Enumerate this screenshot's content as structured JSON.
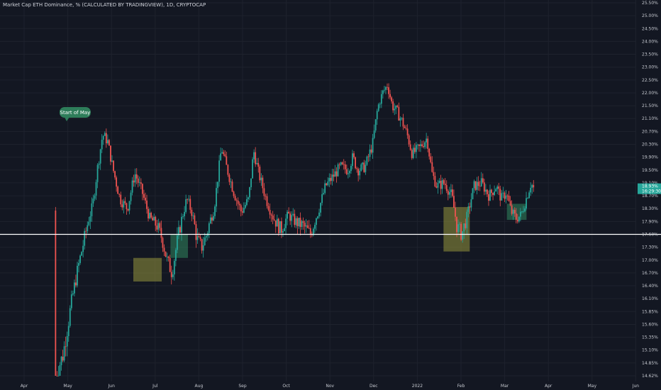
{
  "chart_data": {
    "type": "candlestick",
    "title": "Market Cap ETH Dominance, % (CALCULATED BY TRADINGVIEW), 1D, CRYPTOCAP",
    "x_ticks": [
      "Apr",
      "May",
      "Jun",
      "Jul",
      "Aug",
      "Sep",
      "Oct",
      "Nov",
      "Dec",
      "2022",
      "Feb",
      "Mar",
      "Apr",
      "May",
      "Jun"
    ],
    "y_ticks": [
      "25.50%",
      "25.00%",
      "24.50%",
      "24.00%",
      "23.50%",
      "23.00%",
      "22.50%",
      "22.00%",
      "21.50%",
      "21.10%",
      "20.70%",
      "20.30%",
      "19.90%",
      "19.50%",
      "19.10%",
      "18.70%",
      "18.30%",
      "17.90%",
      "17.60%",
      "17.30%",
      "17.00%",
      "16.70%",
      "16.40%",
      "16.10%",
      "15.85%",
      "15.60%",
      "15.35%",
      "15.10%",
      "14.85%",
      "14.62%"
    ],
    "support_level": 17.6,
    "last_price": {
      "value": "18.93%",
      "countdown": "16:29:30"
    },
    "colors": {
      "up": "#26a69a",
      "down": "#ef5350",
      "background": "#131722",
      "support": "#ffffff",
      "green_box": "#2e7d5a",
      "yellow_box": "#8a8a3a"
    },
    "annotations": [
      {
        "type": "callout",
        "text": "Start of May",
        "at": "May"
      },
      {
        "type": "box",
        "color": "yellow",
        "period": "late Jun",
        "range": [
          16.5,
          17.05
        ]
      },
      {
        "type": "box",
        "color": "green",
        "period": "mid Jul",
        "range": [
          17.05,
          17.6
        ]
      },
      {
        "type": "box",
        "color": "yellow",
        "period": "late Jan",
        "range": [
          17.2,
          18.35
        ]
      },
      {
        "type": "box",
        "color": "green",
        "period": "early Mar",
        "range": [
          17.95,
          18.45
        ]
      }
    ],
    "close_path": [
      {
        "t": 0.0,
        "v": 14.62
      },
      {
        "t": 0.15,
        "v": 15.0
      },
      {
        "t": 0.3,
        "v": 15.9
      },
      {
        "t": 0.45,
        "v": 16.8
      },
      {
        "t": 0.6,
        "v": 17.6
      },
      {
        "t": 0.75,
        "v": 18.4
      },
      {
        "t": 0.85,
        "v": 19.6
      },
      {
        "t": 0.95,
        "v": 20.6
      },
      {
        "t": 1.05,
        "v": 20.4
      },
      {
        "t": 1.15,
        "v": 19.6
      },
      {
        "t": 1.3,
        "v": 18.6
      },
      {
        "t": 1.45,
        "v": 18.3
      },
      {
        "t": 1.6,
        "v": 19.4
      },
      {
        "t": 1.75,
        "v": 18.8
      },
      {
        "t": 1.9,
        "v": 18.0
      },
      {
        "t": 2.05,
        "v": 17.8
      },
      {
        "t": 2.15,
        "v": 17.5
      },
      {
        "t": 2.25,
        "v": 17.0
      },
      {
        "t": 2.35,
        "v": 16.7
      },
      {
        "t": 2.45,
        "v": 17.4
      },
      {
        "t": 2.55,
        "v": 18.0
      },
      {
        "t": 2.65,
        "v": 18.6
      },
      {
        "t": 2.75,
        "v": 18.2
      },
      {
        "t": 2.85,
        "v": 17.5
      },
      {
        "t": 2.95,
        "v": 17.3
      },
      {
        "t": 3.05,
        "v": 17.6
      },
      {
        "t": 3.2,
        "v": 18.3
      },
      {
        "t": 3.35,
        "v": 20.2
      },
      {
        "t": 3.45,
        "v": 19.6
      },
      {
        "t": 3.6,
        "v": 18.8
      },
      {
        "t": 3.75,
        "v": 18.2
      },
      {
        "t": 3.9,
        "v": 18.6
      },
      {
        "t": 4.0,
        "v": 20.1
      },
      {
        "t": 4.1,
        "v": 19.4
      },
      {
        "t": 4.25,
        "v": 18.6
      },
      {
        "t": 4.4,
        "v": 18.0
      },
      {
        "t": 4.55,
        "v": 17.7
      },
      {
        "t": 4.7,
        "v": 18.1
      },
      {
        "t": 4.85,
        "v": 17.9
      },
      {
        "t": 5.0,
        "v": 17.8
      },
      {
        "t": 5.15,
        "v": 17.6
      },
      {
        "t": 5.3,
        "v": 18.2
      },
      {
        "t": 5.45,
        "v": 19.0
      },
      {
        "t": 5.6,
        "v": 19.3
      },
      {
        "t": 5.75,
        "v": 19.6
      },
      {
        "t": 5.9,
        "v": 19.5
      },
      {
        "t": 6.0,
        "v": 19.9
      },
      {
        "t": 6.1,
        "v": 19.5
      },
      {
        "t": 6.25,
        "v": 19.6
      },
      {
        "t": 6.4,
        "v": 20.3
      },
      {
        "t": 6.5,
        "v": 21.4
      },
      {
        "t": 6.6,
        "v": 22.0
      },
      {
        "t": 6.7,
        "v": 22.3
      },
      {
        "t": 6.8,
        "v": 21.5
      },
      {
        "t": 6.9,
        "v": 21.3
      },
      {
        "t": 7.0,
        "v": 21.0
      },
      {
        "t": 7.1,
        "v": 20.6
      },
      {
        "t": 7.2,
        "v": 20.0
      },
      {
        "t": 7.35,
        "v": 20.2
      },
      {
        "t": 7.5,
        "v": 20.5
      },
      {
        "t": 7.6,
        "v": 19.4
      },
      {
        "t": 7.7,
        "v": 19.0
      },
      {
        "t": 7.85,
        "v": 19.1
      },
      {
        "t": 8.0,
        "v": 18.7
      },
      {
        "t": 8.1,
        "v": 17.8
      },
      {
        "t": 8.2,
        "v": 17.6
      },
      {
        "t": 8.3,
        "v": 18.0
      },
      {
        "t": 8.45,
        "v": 19.0
      },
      {
        "t": 8.6,
        "v": 19.1
      },
      {
        "t": 8.75,
        "v": 18.7
      },
      {
        "t": 8.9,
        "v": 19.0
      },
      {
        "t": 9.0,
        "v": 18.6
      },
      {
        "t": 9.1,
        "v": 18.8
      },
      {
        "t": 9.2,
        "v": 18.2
      },
      {
        "t": 9.3,
        "v": 18.0
      },
      {
        "t": 9.4,
        "v": 18.1
      },
      {
        "t": 9.5,
        "v": 18.6
      },
      {
        "t": 9.6,
        "v": 19.1
      },
      {
        "t": 9.65,
        "v": 18.93
      }
    ]
  }
}
